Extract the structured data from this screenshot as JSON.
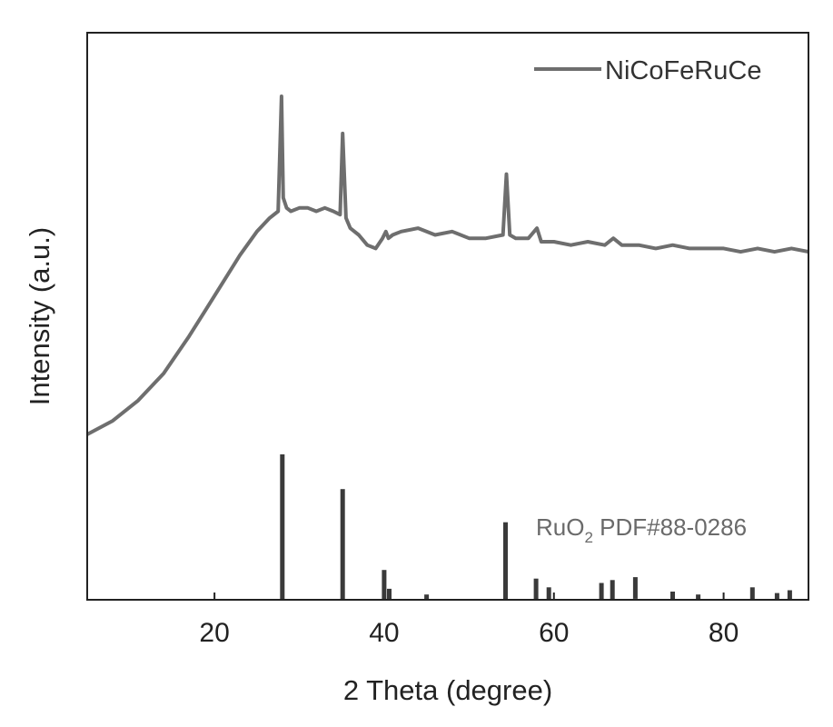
{
  "chart_data": {
    "type": "line",
    "xlabel": "2 Theta (degree)",
    "ylabel": "Intensity (a.u.)",
    "xlim": [
      5,
      90
    ],
    "x_ticks": [
      "20",
      "40",
      "60",
      "80"
    ],
    "x_tick_values": [
      20,
      40,
      60,
      80
    ],
    "y_ticks_shown": false,
    "grid": false,
    "legend": {
      "position": "top-right",
      "entries": [
        "NiCoFeRuCe"
      ]
    },
    "series": [
      {
        "name": "NiCoFeRuCe",
        "color": "#6e6e6e",
        "x": [
          5,
          8,
          11,
          14,
          17,
          19,
          21,
          23,
          25,
          26.5,
          27.5,
          27.9,
          28.1,
          28.5,
          29,
          30,
          31,
          32,
          33,
          34,
          34.8,
          35.1,
          35.5,
          36,
          37,
          38,
          39,
          39.8,
          40.2,
          40.5,
          41,
          42,
          44,
          46,
          48,
          50,
          52,
          54,
          54.4,
          54.8,
          55.5,
          57,
          58,
          58.5,
          60,
          62,
          64,
          66,
          67,
          68,
          70,
          72,
          74,
          76,
          78,
          80,
          82,
          84,
          86,
          88,
          90
        ],
        "y": [
          0.0,
          0.04,
          0.1,
          0.18,
          0.29,
          0.37,
          0.45,
          0.53,
          0.6,
          0.64,
          0.66,
          1.0,
          0.7,
          0.67,
          0.66,
          0.67,
          0.67,
          0.66,
          0.67,
          0.66,
          0.65,
          0.89,
          0.64,
          0.61,
          0.59,
          0.56,
          0.55,
          0.58,
          0.6,
          0.58,
          0.59,
          0.6,
          0.61,
          0.59,
          0.6,
          0.58,
          0.58,
          0.59,
          0.77,
          0.59,
          0.58,
          0.58,
          0.61,
          0.57,
          0.57,
          0.56,
          0.57,
          0.56,
          0.58,
          0.56,
          0.56,
          0.55,
          0.56,
          0.55,
          0.55,
          0.55,
          0.54,
          0.55,
          0.54,
          0.55,
          0.54
        ]
      }
    ],
    "reference": {
      "label_main": "RuO",
      "label_sub": "2",
      "label_rest": " PDF#88-0286",
      "color": "#3a3a3a",
      "peaks": [
        {
          "x": 28.0,
          "intensity": 100
        },
        {
          "x": 35.1,
          "intensity": 76
        },
        {
          "x": 40.0,
          "intensity": 20
        },
        {
          "x": 40.6,
          "intensity": 7
        },
        {
          "x": 45.0,
          "intensity": 3
        },
        {
          "x": 54.3,
          "intensity": 53
        },
        {
          "x": 57.9,
          "intensity": 14
        },
        {
          "x": 59.4,
          "intensity": 8
        },
        {
          "x": 65.6,
          "intensity": 11
        },
        {
          "x": 66.9,
          "intensity": 13
        },
        {
          "x": 69.6,
          "intensity": 15
        },
        {
          "x": 74.0,
          "intensity": 5
        },
        {
          "x": 77.0,
          "intensity": 3
        },
        {
          "x": 83.4,
          "intensity": 8
        },
        {
          "x": 86.3,
          "intensity": 4
        },
        {
          "x": 87.8,
          "intensity": 6
        }
      ]
    }
  }
}
